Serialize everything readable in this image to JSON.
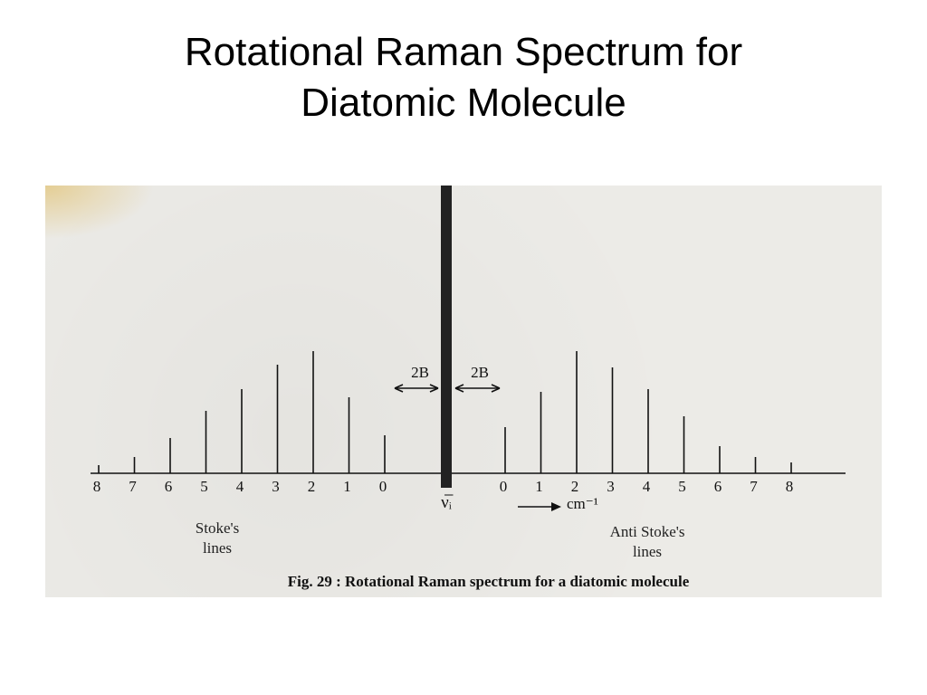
{
  "slide": {
    "title_line1": "Rotational Raman Spectrum for",
    "title_line2": "Diatomic Molecule"
  },
  "colors": {
    "ink": "#111111",
    "paper": "#ecebe7",
    "rayleigh_line": "#222222"
  },
  "chart_data": {
    "type": "bar",
    "title": "Fig. 29 : Rotational Raman spectrum for a diatomic molecule",
    "xlabel": "cm⁻¹",
    "center_label": "ν̅ᵢ",
    "spacing_label_left": "2B",
    "spacing_label_right": "2B",
    "stokes": {
      "name": "Stoke's lines",
      "name_line1": "Stoke's",
      "name_line2": "lines",
      "J": [
        0,
        1,
        2,
        3,
        4,
        5,
        6,
        7,
        8
      ],
      "intensity": [
        14,
        28,
        45,
        40,
        31,
        23,
        13,
        6,
        3
      ]
    },
    "anti_stokes": {
      "name": "Anti Stoke's lines",
      "name_line1": "Anti Stoke's",
      "name_line2": "lines",
      "J": [
        0,
        1,
        2,
        3,
        4,
        5,
        6,
        7,
        8
      ],
      "intensity": [
        17,
        30,
        45,
        39,
        31,
        21,
        10,
        6,
        4
      ]
    }
  }
}
